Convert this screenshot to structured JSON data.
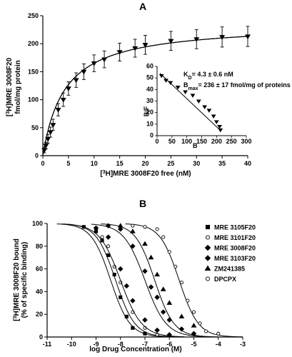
{
  "chart_data": [
    {
      "type": "scatter",
      "panel_label": "A",
      "xlabel_sup": "3",
      "xlabel_rest": "H]MRE 3008F20 free (nM)",
      "ylabel_line1_sup": "3",
      "ylabel_line1_rest": "H]MRE 3008F20",
      "ylabel_line2": "fmol/mg protein",
      "xlim": [
        0,
        40
      ],
      "ylim": [
        0,
        250
      ],
      "xticks": [
        0,
        5,
        10,
        15,
        20,
        25,
        30,
        35,
        40
      ],
      "yticks": [
        0,
        50,
        100,
        150,
        200,
        250
      ],
      "error_bars": true,
      "points": [
        {
          "x": 0.3,
          "y": 10,
          "err": 5
        },
        {
          "x": 0.6,
          "y": 18,
          "err": 6
        },
        {
          "x": 1.0,
          "y": 30,
          "err": 8
        },
        {
          "x": 1.5,
          "y": 42,
          "err": 9
        },
        {
          "x": 2.0,
          "y": 55,
          "err": 10
        },
        {
          "x": 3.0,
          "y": 82,
          "err": 11
        },
        {
          "x": 4.0,
          "y": 100,
          "err": 12
        },
        {
          "x": 5.0,
          "y": 120,
          "err": 12
        },
        {
          "x": 6.5,
          "y": 135,
          "err": 13
        },
        {
          "x": 8.0,
          "y": 150,
          "err": 14
        },
        {
          "x": 10.0,
          "y": 165,
          "err": 15
        },
        {
          "x": 12.0,
          "y": 172,
          "err": 15
        },
        {
          "x": 15.0,
          "y": 185,
          "err": 16
        },
        {
          "x": 18.0,
          "y": 192,
          "err": 16
        },
        {
          "x": 20.0,
          "y": 198,
          "err": 17
        },
        {
          "x": 25.0,
          "y": 205,
          "err": 17
        },
        {
          "x": 30.0,
          "y": 208,
          "err": 17
        },
        {
          "x": 35.0,
          "y": 212,
          "err": 18
        },
        {
          "x": 40.0,
          "y": 213,
          "err": 18
        }
      ],
      "fit": {
        "model": "one-site hyperbola",
        "Bmax": 236,
        "Kd": 4.3
      },
      "inset": {
        "type": "scatter",
        "xlabel": "B",
        "ylabel": "B/F",
        "xlim": [
          0,
          300
        ],
        "ylim": [
          0,
          60
        ],
        "xticks": [
          0,
          50,
          100,
          150,
          200,
          250,
          300
        ],
        "yticks": [
          0,
          10,
          20,
          30,
          40,
          50,
          60
        ],
        "points": [
          {
            "x": 15,
            "y": 52
          },
          {
            "x": 30,
            "y": 48
          },
          {
            "x": 45,
            "y": 46
          },
          {
            "x": 70,
            "y": 42
          },
          {
            "x": 95,
            "y": 38
          },
          {
            "x": 120,
            "y": 35
          },
          {
            "x": 140,
            "y": 30
          },
          {
            "x": 160,
            "y": 25
          },
          {
            "x": 175,
            "y": 22
          },
          {
            "x": 190,
            "y": 17
          },
          {
            "x": 200,
            "y": 12
          },
          {
            "x": 210,
            "y": 8
          },
          {
            "x": 213,
            "y": 5
          }
        ],
        "fit_line": {
          "x": [
            10,
            215
          ],
          "y": [
            54,
            4
          ]
        },
        "kd_label": "K",
        "kd_sub": "D",
        "kd_value": "= 4.3 ± 0.6 nM",
        "bmax_label": "B",
        "bmax_sub": "max",
        "bmax_value": "= 236 ± 17 fmol/mg of proteins"
      }
    },
    {
      "type": "scatter",
      "panel_label": "B",
      "xlabel": "log Drug Concentration (M)",
      "ylabel_line1_sup": "3",
      "ylabel_line1_rest": "H]MRE 3008F20 bound",
      "ylabel_line2": "(% of specific binding)",
      "xlim": [
        -11,
        -3
      ],
      "ylim": [
        0,
        100
      ],
      "xticks": [
        -11,
        -10,
        -9,
        -8,
        -7,
        -6,
        -5,
        -4,
        -3
      ],
      "yticks": [
        0,
        20,
        40,
        60,
        80,
        100
      ],
      "legend_position": "right",
      "series": [
        {
          "name": "MRE 3105F20",
          "marker": "square",
          "filled": true,
          "ec50": -8.4,
          "hill": 1.1,
          "points": [
            [
              -9.5,
              97
            ],
            [
              -9.0,
              93
            ],
            [
              -8.75,
              85
            ],
            [
              -8.5,
              72
            ],
            [
              -8.25,
              55
            ],
            [
              -8.0,
              35
            ],
            [
              -7.75,
              18
            ],
            [
              -7.5,
              8
            ],
            [
              -7.0,
              3
            ]
          ]
        },
        {
          "name": "MRE 3101F20",
          "marker": "circle",
          "filled": false,
          "ec50": -8.2,
          "hill": 1.1,
          "points": [
            [
              -9.0,
              95
            ],
            [
              -8.75,
              88
            ],
            [
              -8.5,
              80
            ],
            [
              -8.25,
              62
            ],
            [
              -8.0,
              48
            ],
            [
              -7.5,
              22
            ],
            [
              -7.0,
              8
            ],
            [
              -6.5,
              2
            ]
          ]
        },
        {
          "name": "MRE 3008F20",
          "marker": "diamond",
          "filled": true,
          "ec50": -8.0,
          "hill": 1.0,
          "points": [
            [
              -9.0,
              96
            ],
            [
              -8.5,
              88
            ],
            [
              -8.0,
              60
            ],
            [
              -7.75,
              45
            ],
            [
              -7.5,
              32
            ],
            [
              -7.0,
              15
            ],
            [
              -6.5,
              6
            ],
            [
              -6.0,
              2
            ]
          ]
        },
        {
          "name": "MRE 3103F20",
          "marker": "diamond",
          "filled": true,
          "ec50": -7.0,
          "hill": 1.0,
          "points": [
            [
              -8.5,
              98
            ],
            [
              -8.0,
              95
            ],
            [
              -7.5,
              80
            ],
            [
              -7.0,
              58
            ],
            [
              -6.75,
              44
            ],
            [
              -6.5,
              35
            ],
            [
              -6.25,
              22
            ],
            [
              -6.0,
              15
            ],
            [
              -5.5,
              7
            ],
            [
              -5.0,
              3
            ]
          ]
        },
        {
          "name": "ZM241385",
          "marker": "triangle",
          "filled": true,
          "ec50": -6.6,
          "hill": 1.1,
          "points": [
            [
              -8.0,
              98
            ],
            [
              -7.5,
              93
            ],
            [
              -7.0,
              82
            ],
            [
              -6.75,
              70
            ],
            [
              -6.5,
              55
            ],
            [
              -6.25,
              42
            ],
            [
              -6.0,
              30
            ],
            [
              -5.5,
              18
            ],
            [
              -5.0,
              10
            ]
          ]
        },
        {
          "name": "DPCPX",
          "marker": "circle",
          "filled": false,
          "ec50": -5.6,
          "hill": 1.1,
          "points": [
            [
              -7.5,
              98
            ],
            [
              -7.0,
              97
            ],
            [
              -6.5,
              95
            ],
            [
              -6.25,
              88
            ],
            [
              -6.0,
              75
            ],
            [
              -5.75,
              62
            ],
            [
              -5.5,
              48
            ],
            [
              -5.25,
              32
            ],
            [
              -5.0,
              22
            ],
            [
              -4.75,
              12
            ],
            [
              -4.5,
              5
            ],
            [
              -4.0,
              3
            ]
          ]
        }
      ]
    }
  ]
}
